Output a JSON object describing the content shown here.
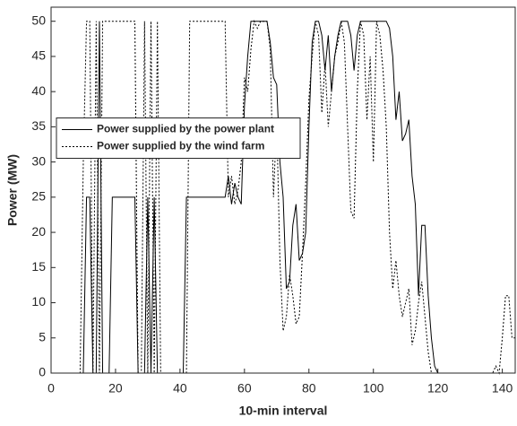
{
  "chart_data": {
    "type": "line",
    "xlabel": "10-min interval",
    "ylabel": "Power (MW)",
    "x": [
      0,
      1,
      2,
      3,
      4,
      5,
      6,
      7,
      8,
      9,
      10,
      11,
      12,
      13,
      14,
      15,
      16,
      17,
      18,
      19,
      20,
      21,
      22,
      23,
      24,
      25,
      26,
      27,
      28,
      29,
      30,
      31,
      32,
      33,
      34,
      35,
      36,
      37,
      38,
      39,
      40,
      41,
      42,
      43,
      44,
      45,
      46,
      47,
      48,
      49,
      50,
      51,
      52,
      53,
      54,
      55,
      56,
      57,
      58,
      59,
      60,
      61,
      62,
      63,
      64,
      65,
      66,
      67,
      68,
      69,
      70,
      71,
      72,
      73,
      74,
      75,
      76,
      77,
      78,
      79,
      80,
      81,
      82,
      83,
      84,
      85,
      86,
      87,
      88,
      89,
      90,
      91,
      92,
      93,
      94,
      95,
      96,
      97,
      98,
      99,
      100,
      101,
      102,
      103,
      104,
      105,
      106,
      107,
      108,
      109,
      110,
      111,
      112,
      113,
      114,
      115,
      116,
      117,
      118,
      119,
      120,
      121,
      122,
      123,
      124,
      125,
      126,
      127,
      128,
      129,
      130,
      131,
      132,
      133,
      134,
      135,
      136,
      137,
      138,
      139,
      140,
      141,
      142,
      143,
      144
    ],
    "series": [
      {
        "name": "Power supplied by the power plant",
        "color": "#000000",
        "linestyle": "solid",
        "values": [
          0,
          0,
          0,
          0,
          0,
          0,
          0,
          0,
          0,
          0,
          0,
          25,
          25,
          0,
          0,
          50,
          0,
          0,
          0,
          25,
          25,
          25,
          25,
          25,
          25,
          25,
          25,
          0,
          0,
          0,
          25,
          0,
          25,
          0,
          0,
          0,
          0,
          0,
          0,
          0,
          0,
          0,
          25,
          25,
          25,
          25,
          25,
          25,
          25,
          25,
          25,
          25,
          25,
          25,
          25,
          28,
          24,
          27,
          25,
          24,
          38,
          45,
          50,
          50,
          50,
          50,
          50,
          50,
          47,
          42,
          41,
          30,
          25,
          12,
          13,
          21,
          24,
          16,
          17,
          20,
          35,
          47,
          50,
          50,
          48,
          43,
          48,
          40,
          45,
          48,
          50,
          50,
          50,
          48,
          43,
          48,
          50,
          50,
          50,
          50,
          50,
          50,
          50,
          50,
          50,
          49,
          45,
          36,
          40,
          33,
          34,
          36,
          28,
          24,
          11,
          21,
          21,
          11,
          5,
          1,
          0,
          0,
          0,
          0,
          0,
          0,
          0,
          0,
          0,
          0,
          0,
          0,
          0,
          0,
          0,
          0,
          0,
          0,
          0,
          0,
          0,
          0,
          0,
          0,
          0
        ]
      },
      {
        "name": "Power supplied by the wind farm",
        "color": "#000000",
        "linestyle": "dotted",
        "values": [
          0,
          0,
          0,
          0,
          0,
          0,
          0,
          0,
          0,
          0,
          30,
          50,
          50,
          0,
          50,
          0,
          50,
          50,
          50,
          50,
          50,
          50,
          50,
          50,
          50,
          50,
          50,
          0,
          0,
          50,
          0,
          50,
          0,
          50,
          0,
          0,
          0,
          0,
          0,
          0,
          0,
          0,
          0,
          50,
          50,
          50,
          50,
          50,
          50,
          50,
          50,
          50,
          50,
          50,
          50,
          25,
          28,
          24,
          26,
          30,
          42,
          40,
          46,
          50,
          49,
          50,
          50,
          50,
          46,
          25,
          36,
          16,
          6,
          8,
          14,
          11,
          7,
          8,
          17,
          27,
          39,
          45,
          50,
          48,
          37,
          44,
          35,
          40,
          45,
          47,
          50,
          47,
          35,
          23,
          22,
          40,
          50,
          48,
          36,
          45,
          30,
          50,
          48,
          43,
          35,
          20,
          12,
          16,
          11,
          8,
          10,
          12,
          4,
          6,
          10,
          13,
          8,
          3,
          0,
          0,
          0,
          0,
          0,
          0,
          0,
          0,
          0,
          0,
          0,
          0,
          0,
          0,
          0,
          0,
          0,
          0,
          0,
          0,
          1,
          0,
          5,
          11,
          11,
          5,
          5
        ]
      }
    ],
    "xlim": [
      0,
      144
    ],
    "xticks": [
      0,
      20,
      40,
      60,
      80,
      100,
      120,
      140
    ],
    "ylim": [
      0,
      52
    ],
    "yticks": [
      0,
      5,
      10,
      15,
      20,
      25,
      30,
      35,
      40,
      45,
      50
    ],
    "grid": false,
    "legend": "center left"
  }
}
